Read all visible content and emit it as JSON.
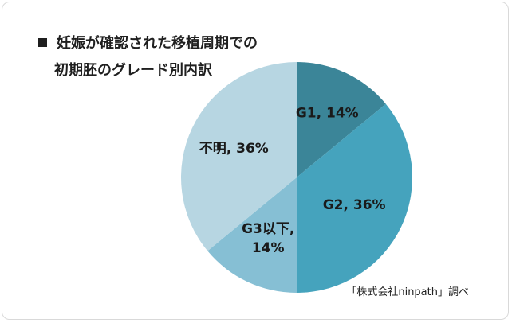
{
  "title": {
    "line1": "妊娠が確認された移植周期での",
    "line2": "初期胚のグレード別内訳"
  },
  "source": "「株式会社ninpath」調べ",
  "colors": {
    "background": "#ffffff",
    "border": "#d9d9d9",
    "text": "#1a1a1a"
  },
  "chart_data": {
    "type": "pie",
    "title": "妊娠が確認された移植周期での初期胚のグレード別内訳",
    "slices": [
      {
        "name": "G1",
        "value": 14,
        "label_lines": [
          "G1, 14%"
        ],
        "color": "#3b8598"
      },
      {
        "name": "G2",
        "value": 36,
        "label_lines": [
          "G2, 36%"
        ],
        "color": "#45a3bd"
      },
      {
        "name": "G3以下",
        "value": 14,
        "label_lines": [
          "G3以下,",
          "14%"
        ],
        "color": "#86bfd4"
      },
      {
        "name": "不明",
        "value": 36,
        "label_lines": [
          "不明, 36%"
        ],
        "color": "#b7d6e2"
      }
    ],
    "legend": "none"
  }
}
